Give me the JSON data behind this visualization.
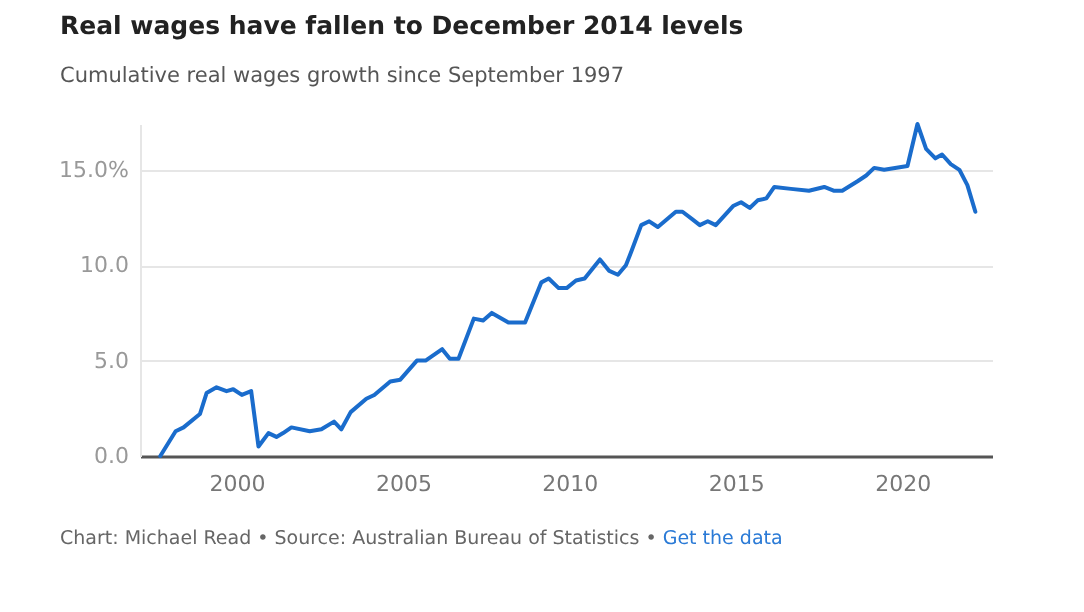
{
  "chart_data": {
    "type": "line",
    "title": "Real wages have fallen to December 2014 levels",
    "subtitle": "Cumulative real wages growth since September 1997",
    "annotations": [
      "Chart: Michael Read • Source: Australian Bureau of Statistics •",
      "Get the data"
    ],
    "series": [
      {
        "color": "#1a6ccc",
        "x": [
          1997.71,
          1998.17,
          1998.41,
          1998.9,
          1999.1,
          1999.4,
          1999.7,
          1999.9,
          2000.16,
          2000.44,
          2000.66,
          2000.96,
          2001.2,
          2001.4,
          2001.65,
          2002.2,
          2002.55,
          2002.93,
          2003.15,
          2003.43,
          2003.9,
          2004.14,
          2004.62,
          2004.92,
          2005.42,
          2005.68,
          2006.18,
          2006.41,
          2006.67,
          2007.13,
          2007.41,
          2007.67,
          2008.17,
          2008.67,
          2009.16,
          2009.38,
          2009.68,
          2009.92,
          2010.2,
          2010.46,
          2010.92,
          2011.2,
          2011.46,
          2011.7,
          2011.86,
          2012.16,
          2012.4,
          2012.66,
          2013.2,
          2013.4,
          2013.7,
          2013.92,
          2014.16,
          2014.4,
          2014.92,
          2015.16,
          2015.42,
          2015.66,
          2015.92,
          2016.16,
          2016.66,
          2017.2,
          2017.66,
          2017.96,
          2018.2,
          2018.66,
          2018.92,
          2019.16,
          2019.46,
          2020.16,
          2020.46,
          2020.72,
          2021.0,
          2021.2,
          2021.46,
          2021.72,
          2021.96,
          2022.2
        ],
        "values": [
          0,
          1.3,
          1.5,
          2.2,
          3.3,
          3.6,
          3.4,
          3.5,
          3.2,
          3.4,
          0.5,
          1.2,
          1.0,
          1.2,
          1.5,
          1.3,
          1.4,
          1.8,
          1.4,
          2.3,
          3.0,
          3.2,
          3.9,
          4.0,
          5.0,
          5.0,
          5.6,
          5.1,
          5.1,
          7.2,
          7.1,
          7.5,
          7.0,
          7.0,
          9.1,
          9.3,
          8.8,
          8.8,
          9.2,
          9.3,
          10.3,
          9.7,
          9.5,
          10.0,
          10.7,
          12.1,
          12.3,
          12.0,
          12.8,
          12.8,
          12.4,
          12.1,
          12.3,
          12.1,
          13.1,
          13.3,
          13.0,
          13.4,
          13.5,
          14.1,
          14.0,
          13.9,
          14.1,
          13.9,
          13.9,
          14.4,
          14.7,
          15.1,
          15.0,
          15.2,
          17.4,
          16.1,
          15.6,
          15.8,
          15.3,
          15.0,
          14.2,
          12.8
        ]
      }
    ],
    "xlim": [
      1997.1,
      2022.7
    ],
    "xticks": [
      2000,
      2005,
      2010,
      2015,
      2020
    ],
    "ylim": [
      0,
      17.4
    ],
    "yticks": [
      {
        "value": 0,
        "label": "0.0"
      },
      {
        "value": 5,
        "label": "5.0"
      },
      {
        "value": 10,
        "label": "10.0"
      },
      {
        "value": 15,
        "label": "15.0%"
      }
    ],
    "grid": "y",
    "marker": "none",
    "line_style": "solid"
  }
}
